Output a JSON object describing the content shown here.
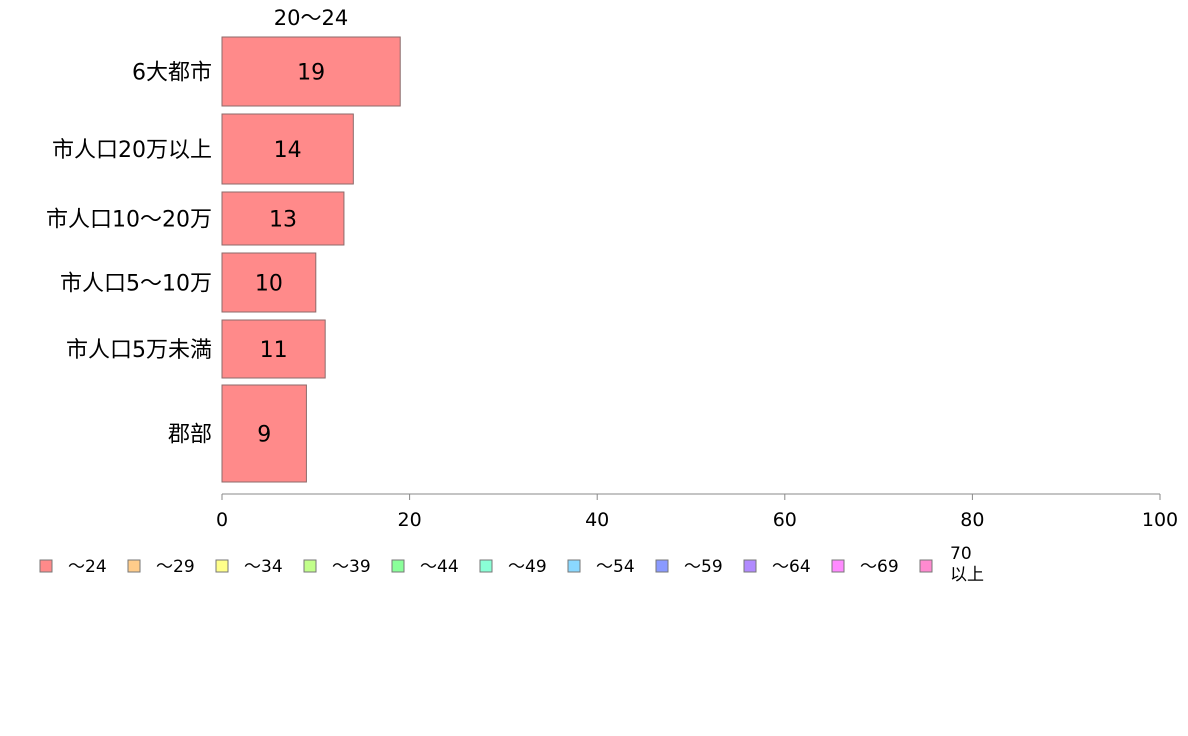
{
  "chart_data": {
    "type": "bar",
    "orientation": "horizontal",
    "column_title": "20〜24",
    "categories": [
      "6大都市",
      "市人口20万以上",
      "市人口10〜20万",
      "市人口5〜10万",
      "市人口5万未満",
      "郡部"
    ],
    "series": [
      {
        "name": "〜24",
        "values": [
          19,
          14,
          13,
          10,
          11,
          9
        ],
        "color": "#ff8a8a"
      }
    ],
    "value_labels": [
      "19",
      "14",
      "13",
      "10",
      "11",
      "9"
    ],
    "xlim": [
      0,
      100
    ],
    "xticks": [
      0,
      20,
      40,
      60,
      80,
      100
    ],
    "xtick_labels": [
      "0",
      "20",
      "40",
      "60",
      "80",
      "100"
    ],
    "grid": false,
    "legend_position": "bottom",
    "legend": [
      {
        "label": "〜24",
        "color": "#ff8a8a"
      },
      {
        "label": "〜29",
        "color": "#ffcc8a"
      },
      {
        "label": "〜34",
        "color": "#ffff8a"
      },
      {
        "label": "〜39",
        "color": "#c2ff8a"
      },
      {
        "label": "〜44",
        "color": "#8aff9a"
      },
      {
        "label": "〜49",
        "color": "#8affd6"
      },
      {
        "label": "〜54",
        "color": "#8ad8ff"
      },
      {
        "label": "〜59",
        "color": "#8a9aff"
      },
      {
        "label": "〜64",
        "color": "#b18aff"
      },
      {
        "label": "〜69",
        "color": "#ff8aff"
      },
      {
        "label": "70\n以上",
        "color": "#ff8ad0"
      }
    ]
  }
}
